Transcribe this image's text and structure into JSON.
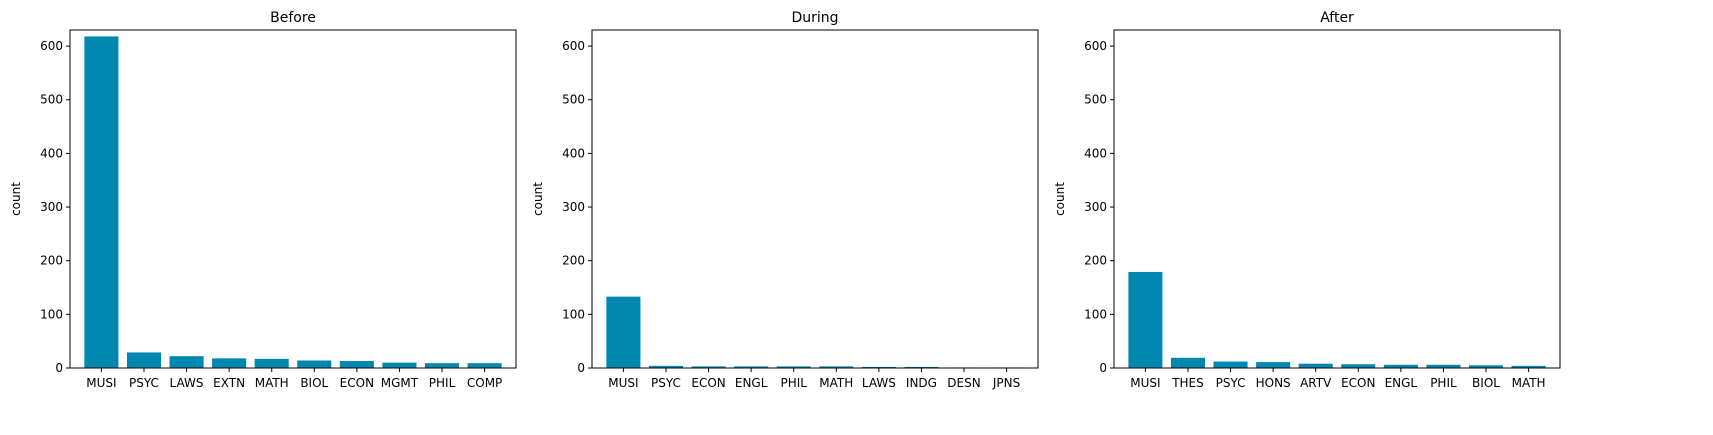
{
  "chart_data": [
    {
      "type": "bar",
      "title": "Before",
      "xlabel": "",
      "ylabel": "count",
      "ylim": [
        0,
        630
      ],
      "yticks": [
        0,
        100,
        200,
        300,
        400,
        500,
        600
      ],
      "categories": [
        "MUSI",
        "PSYC",
        "LAWS",
        "EXTN",
        "MATH",
        "BIOL",
        "ECON",
        "MGMT",
        "PHIL",
        "COMP"
      ],
      "values": [
        618,
        29,
        22,
        18,
        17,
        14,
        13,
        10,
        9,
        9
      ],
      "bar_color": "#0088b0",
      "grid": false
    },
    {
      "type": "bar",
      "title": "During",
      "xlabel": "",
      "ylabel": "count",
      "ylim": [
        0,
        630
      ],
      "yticks": [
        0,
        100,
        200,
        300,
        400,
        500,
        600
      ],
      "categories": [
        "MUSI",
        "PSYC",
        "ECON",
        "ENGL",
        "PHIL",
        "MATH",
        "LAWS",
        "INDG",
        "DESN",
        "JPNS"
      ],
      "values": [
        133,
        4,
        3,
        3,
        3,
        3,
        2,
        2,
        1,
        1
      ],
      "bar_color": "#0088b0",
      "grid": false
    },
    {
      "type": "bar",
      "title": "After",
      "xlabel": "",
      "ylabel": "count",
      "ylim": [
        0,
        630
      ],
      "yticks": [
        0,
        100,
        200,
        300,
        400,
        500,
        600
      ],
      "categories": [
        "MUSI",
        "THES",
        "PSYC",
        "HONS",
        "ARTV",
        "ECON",
        "ENGL",
        "PHIL",
        "BIOL",
        "MATH"
      ],
      "values": [
        179,
        19,
        12,
        11,
        8,
        7,
        6,
        6,
        5,
        4
      ],
      "bar_color": "#0088b0",
      "grid": false
    }
  ]
}
